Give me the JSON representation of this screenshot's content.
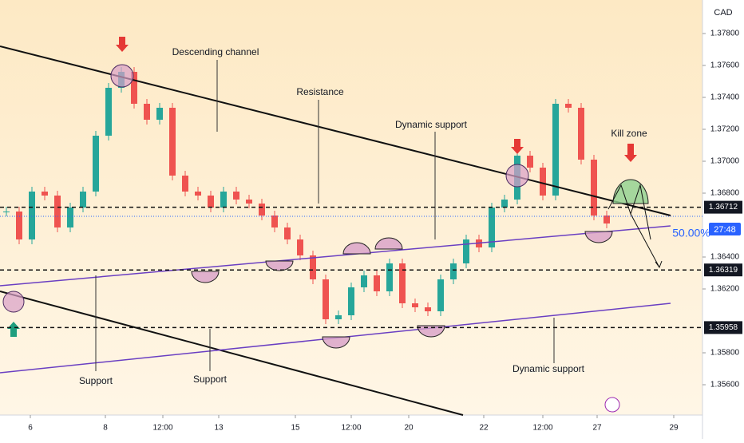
{
  "chart_data": {
    "type": "candlestick",
    "currency": "CAD",
    "x": [
      2,
      6,
      10,
      14,
      18,
      22,
      26,
      30,
      34,
      38,
      42,
      46,
      50,
      54,
      58,
      62,
      66,
      70,
      74,
      78,
      82,
      86,
      90,
      94,
      98,
      102,
      106,
      110,
      114,
      118,
      122,
      126,
      130,
      134,
      138,
      142,
      146,
      150,
      154,
      158,
      162,
      166,
      170,
      174,
      178,
      182,
      186,
      190
    ],
    "close": [
      1.36685,
      1.3651,
      1.3681,
      1.36785,
      1.36585,
      1.3671,
      1.3681,
      1.3716,
      1.3746,
      1.3756,
      1.3736,
      1.3726,
      1.37335,
      1.3691,
      1.3681,
      1.36785,
      1.3671,
      1.3681,
      1.3676,
      1.36735,
      1.3666,
      1.36585,
      1.3651,
      1.3641,
      1.3626,
      1.3601,
      1.36035,
      1.3621,
      1.36285,
      1.36185,
      1.3636,
      1.3611,
      1.36085,
      1.3606,
      1.3626,
      1.3636,
      1.3651,
      1.3646,
      1.3671,
      1.3676,
      1.37035,
      1.3696,
      1.36785,
      1.3736,
      1.37335,
      1.3701,
      1.3666,
      1.3661
    ],
    "up_color": "#26a69a",
    "down_color": "#ef5350",
    "xlim": [
      0,
      220
    ],
    "ylim": [
      1.3541,
      1.3801
    ],
    "xticks": [
      {
        "value": 9.5,
        "label": "6"
      },
      {
        "value": 33,
        "label": "8"
      },
      {
        "value": 51,
        "label": "12:00"
      },
      {
        "value": 68.5,
        "label": "13"
      },
      {
        "value": 92.5,
        "label": "15"
      },
      {
        "value": 110,
        "label": "12:00"
      },
      {
        "value": 128,
        "label": "20"
      },
      {
        "value": 151.5,
        "label": "22"
      },
      {
        "value": 170,
        "label": "12:00"
      },
      {
        "value": 187,
        "label": "27"
      },
      {
        "value": 211,
        "label": "29"
      }
    ],
    "yticks": [
      {
        "value": 1.378,
        "label": "1.37800"
      },
      {
        "value": 1.376,
        "label": "1.37600"
      },
      {
        "value": 1.374,
        "label": "1.37400"
      },
      {
        "value": 1.372,
        "label": "1.37200"
      },
      {
        "value": 1.37,
        "label": "1.37000"
      },
      {
        "value": 1.368,
        "label": "1.36800"
      },
      {
        "value": 1.364,
        "label": "1.36400"
      },
      {
        "value": 1.362,
        "label": "1.36200"
      },
      {
        "value": 1.358,
        "label": "1.35800"
      },
      {
        "value": 1.356,
        "label": "1.35600"
      }
    ],
    "levels": [
      {
        "value": 1.36712,
        "label": "1.36712"
      },
      {
        "value": 1.36319,
        "label": "1.36319"
      },
      {
        "value": 1.35958,
        "label": "1.35958"
      }
    ],
    "annotations": [
      "Descending channel",
      "Resistance",
      "Dynamic support",
      "Dynamic support",
      "Support",
      "Support",
      "Kill zone",
      "50.00%",
      "27:48"
    ]
  }
}
